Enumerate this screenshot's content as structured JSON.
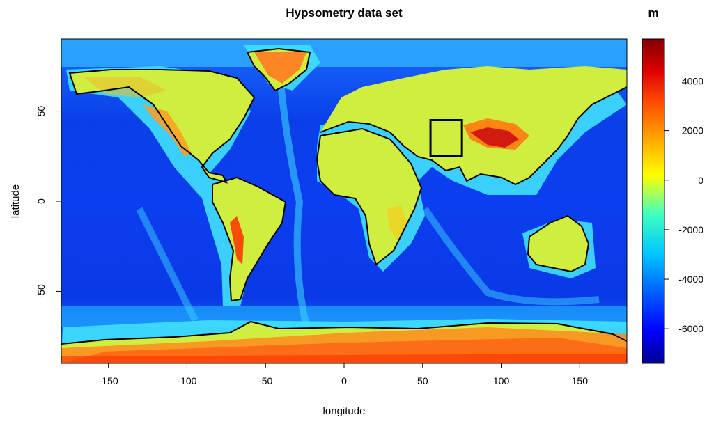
{
  "chart_data": {
    "type": "heatmap",
    "title": "Hypsometry data set",
    "xlabel": "longitude",
    "ylabel": "latitude",
    "xlim": [
      -180,
      180
    ],
    "ylim": [
      -90,
      90
    ],
    "x_ticks": [
      -150,
      -100,
      -50,
      0,
      50,
      100,
      150
    ],
    "x_tick_labels": [
      "-150",
      "-100",
      "-50",
      "0",
      "50",
      "100",
      "150"
    ],
    "y_ticks": [
      -50,
      0,
      50
    ],
    "y_tick_labels": [
      "-50",
      "0",
      "50"
    ],
    "colorbar": {
      "title": "m",
      "range": [
        -7400,
        5700
      ],
      "ticks": [
        -6000,
        -4000,
        -2000,
        0,
        2000,
        4000
      ],
      "tick_labels": [
        "-6000",
        "-4000",
        "-2000",
        "0",
        "2000",
        "4000"
      ],
      "colors": [
        "#00008f",
        "#0000ff",
        "#0060ff",
        "#00c8ff",
        "#40ffbf",
        "#b0ff50",
        "#ffff00",
        "#ffb000",
        "#ff5000",
        "#e00000",
        "#800000"
      ]
    },
    "highlight_box": {
      "lon_range": [
        55,
        75
      ],
      "lat_range": [
        25,
        45
      ]
    }
  },
  "icons": {
    "coastline": "coastline-contour",
    "box": "highlight-box-rectangle"
  }
}
